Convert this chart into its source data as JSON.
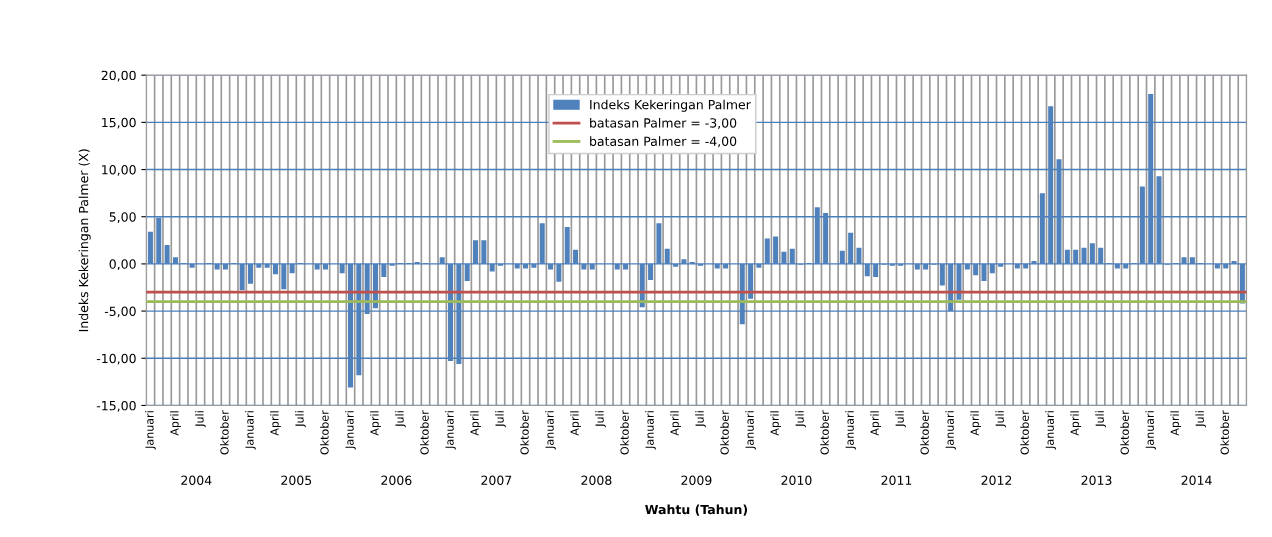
{
  "chart_data": {
    "type": "bar",
    "ylabel": "Indeks Kekeringan Palmer (X)",
    "xlabel": "Wahtu (Tahun)",
    "categories": [
      "Januari",
      null,
      null,
      "April",
      null,
      null,
      "Juli",
      null,
      null,
      "Oktober",
      null,
      null,
      "Januari",
      null,
      null,
      "April",
      null,
      null,
      "Juli",
      null,
      null,
      "Oktober",
      null,
      null,
      "Januari",
      null,
      null,
      "April",
      null,
      null,
      "Juli",
      null,
      null,
      "Oktober",
      null,
      null,
      "Januari",
      null,
      null,
      "April",
      null,
      null,
      "Juli",
      null,
      null,
      "Oktober",
      null,
      null,
      "Januari",
      null,
      null,
      "April",
      null,
      null,
      "Juli",
      null,
      null,
      "Oktober",
      null,
      null,
      "Januari",
      null,
      null,
      "April",
      null,
      null,
      "Juli",
      null,
      null,
      "Oktober",
      null,
      null,
      "Januari",
      null,
      null,
      "April",
      null,
      null,
      "Juli",
      null,
      null,
      "Oktober",
      null,
      null,
      "Januari",
      null,
      null,
      "April",
      null,
      null,
      "Juli",
      null,
      null,
      "Oktober",
      null,
      null,
      "Januari",
      null,
      null,
      "April",
      null,
      null,
      "Juli",
      null,
      null,
      "Oktober",
      null,
      null,
      "Januari",
      null,
      null,
      "April",
      null,
      null,
      "Juli",
      null,
      null,
      "Oktober",
      null,
      null,
      "Januari",
      null,
      null,
      "April",
      null,
      null,
      "Juli",
      null,
      null,
      "Oktober",
      null,
      null
    ],
    "series": [
      {
        "name": "Indeks Kekeringan Palmer",
        "color": "#4f81bd",
        "values": [
          3.4,
          4.9,
          2.0,
          0.7,
          0.1,
          -0.4,
          0.0,
          0.1,
          -0.6,
          -0.6,
          0.1,
          -2.8,
          -2.1,
          -0.4,
          -0.4,
          -1.1,
          -2.7,
          -1.0,
          0.1,
          0.0,
          -0.6,
          -0.6,
          0.0,
          -1.0,
          -13.1,
          -11.8,
          -5.3,
          -4.7,
          -1.4,
          -0.2,
          0.1,
          0.1,
          0.2,
          0.1,
          0.0,
          0.7,
          -10.3,
          -10.6,
          -1.8,
          2.5,
          2.5,
          -0.8,
          -0.2,
          0.0,
          -0.5,
          -0.5,
          -0.4,
          4.3,
          -0.6,
          -1.9,
          3.9,
          1.5,
          -0.6,
          -0.6,
          0.0,
          0.0,
          -0.6,
          -0.6,
          0.0,
          -4.6,
          -1.7,
          4.3,
          1.6,
          -0.3,
          0.5,
          0.2,
          -0.2,
          0.0,
          -0.5,
          -0.5,
          0.0,
          -6.4,
          -3.7,
          -0.4,
          2.7,
          2.9,
          1.3,
          1.6,
          -0.1,
          0.1,
          6.0,
          5.4,
          0.0,
          1.4,
          3.3,
          1.7,
          -1.3,
          -1.4,
          -0.1,
          -0.2,
          -0.2,
          0.0,
          -0.6,
          -0.6,
          -0.1,
          -2.3,
          -5.0,
          -3.8,
          -0.6,
          -1.2,
          -1.8,
          -1.0,
          -0.3,
          0.0,
          -0.5,
          -0.5,
          0.3,
          7.5,
          16.7,
          11.1,
          1.5,
          1.5,
          1.7,
          2.2,
          1.7,
          0.1,
          -0.5,
          -0.5,
          0.1,
          8.2,
          18.0,
          9.3,
          -0.1,
          0.1,
          0.7,
          0.7,
          0.1,
          0.0,
          -0.5,
          -0.5,
          0.3,
          -4.2
        ]
      }
    ],
    "ylim": [
      -15,
      20
    ],
    "yticks": [
      {
        "value": -15,
        "label": "-15,00"
      },
      {
        "value": -10,
        "label": "-10,00"
      },
      {
        "value": -5,
        "label": "-5,00"
      },
      {
        "value": 0,
        "label": "0,00"
      },
      {
        "value": 5,
        "label": "5,00"
      },
      {
        "value": 10,
        "label": "10,00"
      },
      {
        "value": 15,
        "label": "15,00"
      },
      {
        "value": 20,
        "label": "20,00"
      }
    ],
    "ref_lines": [
      {
        "axis": "y",
        "value": -3,
        "label": "batasan Palmer = -3,00",
        "color": "#c0504d"
      },
      {
        "axis": "y",
        "value": -4,
        "label": "batasan Palmer = -4,00",
        "color": "#9bbb59"
      }
    ],
    "annotations": [
      "2004",
      "2005",
      "2006",
      "2007",
      "2008",
      "2009",
      "2010",
      "2011",
      "2012",
      "2013",
      "2014"
    ],
    "grid": true,
    "legend": "top"
  }
}
